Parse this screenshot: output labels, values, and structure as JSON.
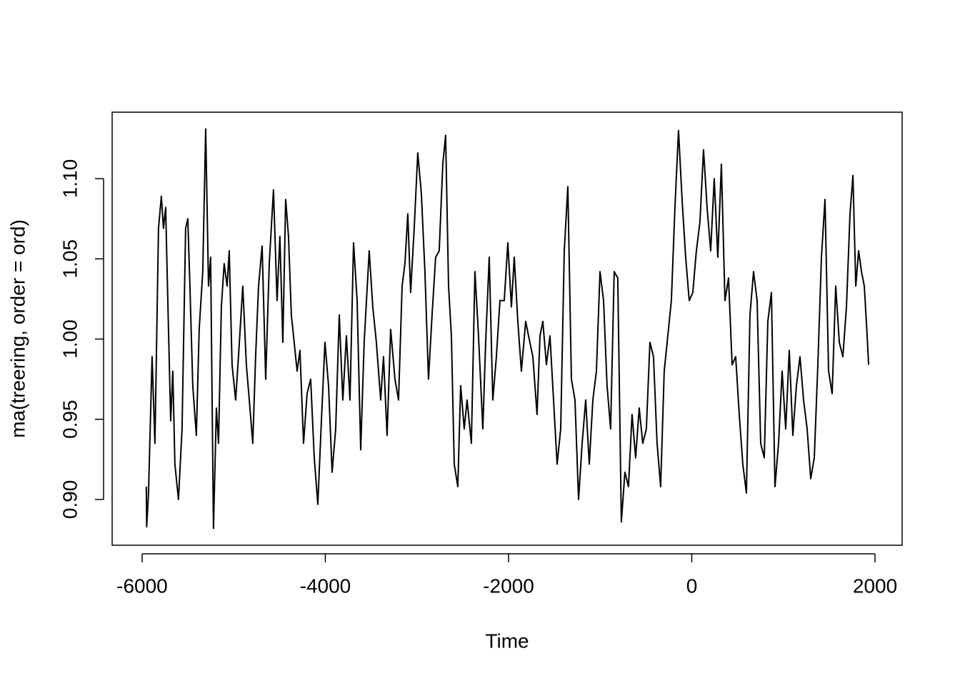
{
  "chart_data": {
    "type": "line",
    "xlabel": "Time",
    "ylabel": "ma(treering, order = ord)",
    "color": "#000000",
    "xlim": [
      -6327,
      2296
    ],
    "ylim": [
      0.8715,
      1.1414
    ],
    "xticks": [
      -6000,
      -4000,
      -2000,
      0,
      2000
    ],
    "yticks": [
      {
        "value": 0.9,
        "label": "0.90"
      },
      0.95,
      {
        "value": 1,
        "label": "1.00"
      },
      1.05,
      {
        "value": 1.1,
        "label": "1.10"
      }
    ],
    "x": [
      -5954,
      -5950,
      -5930,
      -5891,
      -5860,
      -5821,
      -5790,
      -5767,
      -5743,
      -5712,
      -5688,
      -5665,
      -5642,
      -5603,
      -5564,
      -5525,
      -5501,
      -5478,
      -5447,
      -5408,
      -5377,
      -5338,
      -5306,
      -5275,
      -5252,
      -5221,
      -5189,
      -5166,
      -5135,
      -5104,
      -5072,
      -5049,
      -5018,
      -4979,
      -4948,
      -4901,
      -4862,
      -4823,
      -4792,
      -4761,
      -4729,
      -4690,
      -4651,
      -4612,
      -4566,
      -4527,
      -4496,
      -4464,
      -4433,
      -4402,
      -4371,
      -4340,
      -4308,
      -4277,
      -4238,
      -4199,
      -4160,
      -4121,
      -4082,
      -4043,
      -4004,
      -3965,
      -3926,
      -3887,
      -3848,
      -3809,
      -3770,
      -3731,
      -3692,
      -3653,
      -3614,
      -3576,
      -3521,
      -3482,
      -3443,
      -3396,
      -3365,
      -3326,
      -3287,
      -3240,
      -3201,
      -3162,
      -3131,
      -3100,
      -3069,
      -3030,
      -2991,
      -2952,
      -2913,
      -2874,
      -2835,
      -2796,
      -2757,
      -2718,
      -2687,
      -2655,
      -2624,
      -2593,
      -2554,
      -2523,
      -2484,
      -2453,
      -2406,
      -2367,
      -2328,
      -2281,
      -2250,
      -2211,
      -2172,
      -2133,
      -2094,
      -2047,
      -2008,
      -1969,
      -1938,
      -1899,
      -1860,
      -1813,
      -1782,
      -1735,
      -1689,
      -1657,
      -1626,
      -1587,
      -1548,
      -1509,
      -1470,
      -1431,
      -1392,
      -1353,
      -1314,
      -1275,
      -1236,
      -1197,
      -1158,
      -1119,
      -1080,
      -1041,
      -1002,
      -963,
      -925,
      -886,
      -847,
      -808,
      -769,
      -730,
      -691,
      -652,
      -613,
      -574,
      -535,
      -496,
      -457,
      -418,
      -379,
      -340,
      -301,
      -262,
      -223,
      -184,
      -145,
      -106,
      -67,
      -28,
      11,
      50,
      89,
      128,
      167,
      206,
      245,
      284,
      323,
      362,
      401,
      440,
      479,
      518,
      557,
      596,
      635,
      674,
      713,
      752,
      791,
      830,
      869,
      908,
      947,
      986,
      1025,
      1064,
      1103,
      1142,
      1181,
      1220,
      1259,
      1298,
      1337,
      1376,
      1415,
      1454,
      1493,
      1532,
      1571,
      1610,
      1649,
      1688,
      1727,
      1759,
      1790,
      1821,
      1852,
      1883,
      1914,
      1930
    ],
    "values": [
      0.908,
      0.883,
      0.904,
      0.989,
      0.935,
      1.069,
      1.089,
      1.069,
      1.082,
      1.006,
      0.949,
      0.98,
      0.922,
      0.9,
      0.944,
      1.069,
      1.075,
      1.033,
      0.971,
      0.94,
      1.006,
      1.042,
      1.131,
      1.033,
      1.051,
      0.882,
      0.957,
      0.935,
      1.02,
      1.047,
      1.033,
      1.055,
      0.984,
      0.962,
      0.989,
      1.033,
      0.984,
      0.957,
      0.935,
      0.989,
      1.033,
      1.058,
      0.975,
      1.047,
      1.093,
      1.024,
      1.064,
      0.998,
      1.087,
      1.064,
      1.015,
      0.998,
      0.98,
      0.993,
      0.935,
      0.966,
      0.975,
      0.926,
      0.897,
      0.949,
      0.998,
      0.971,
      0.917,
      0.944,
      1.015,
      0.962,
      1.002,
      0.962,
      1.06,
      1.024,
      0.931,
      0.998,
      1.055,
      1.02,
      0.998,
      0.962,
      0.989,
      0.94,
      1.006,
      0.975,
      0.962,
      1.033,
      1.047,
      1.078,
      1.029,
      1.069,
      1.116,
      1.091,
      1.042,
      0.975,
      1.015,
      1.051,
      1.055,
      1.109,
      1.127,
      1.033,
      1.002,
      0.922,
      0.908,
      0.971,
      0.944,
      0.962,
      0.935,
      1.042,
      1.002,
      0.944,
      0.998,
      1.051,
      0.962,
      0.989,
      1.024,
      1.024,
      1.06,
      1.02,
      1.051,
      1.011,
      0.98,
      1.011,
      1.002,
      0.989,
      0.953,
      1.002,
      1.011,
      0.984,
      1.002,
      0.962,
      0.922,
      0.944,
      1.055,
      1.095,
      0.975,
      0.962,
      0.9,
      0.935,
      0.962,
      0.922,
      0.962,
      0.98,
      1.042,
      1.024,
      0.971,
      0.944,
      1.042,
      1.038,
      0.886,
      0.917,
      0.908,
      0.953,
      0.926,
      0.957,
      0.935,
      0.944,
      0.998,
      0.989,
      0.935,
      0.908,
      0.98,
      1.002,
      1.024,
      1.082,
      1.13,
      1.087,
      1.051,
      1.024,
      1.029,
      1.055,
      1.073,
      1.118,
      1.082,
      1.055,
      1.1,
      1.051,
      1.109,
      1.024,
      1.038,
      0.984,
      0.989,
      0.953,
      0.922,
      0.904,
      1.015,
      1.042,
      1.024,
      0.935,
      0.926,
      1.011,
      1.029,
      0.908,
      0.935,
      0.98,
      0.944,
      0.993,
      0.94,
      0.971,
      0.989,
      0.962,
      0.944,
      0.913,
      0.926,
      0.984,
      1.051,
      1.087,
      0.98,
      0.966,
      1.033,
      0.998,
      0.989,
      1.02,
      1.078,
      1.102,
      1.033,
      1.055,
      1.042,
      1.033,
      1.002,
      0.984
    ]
  }
}
